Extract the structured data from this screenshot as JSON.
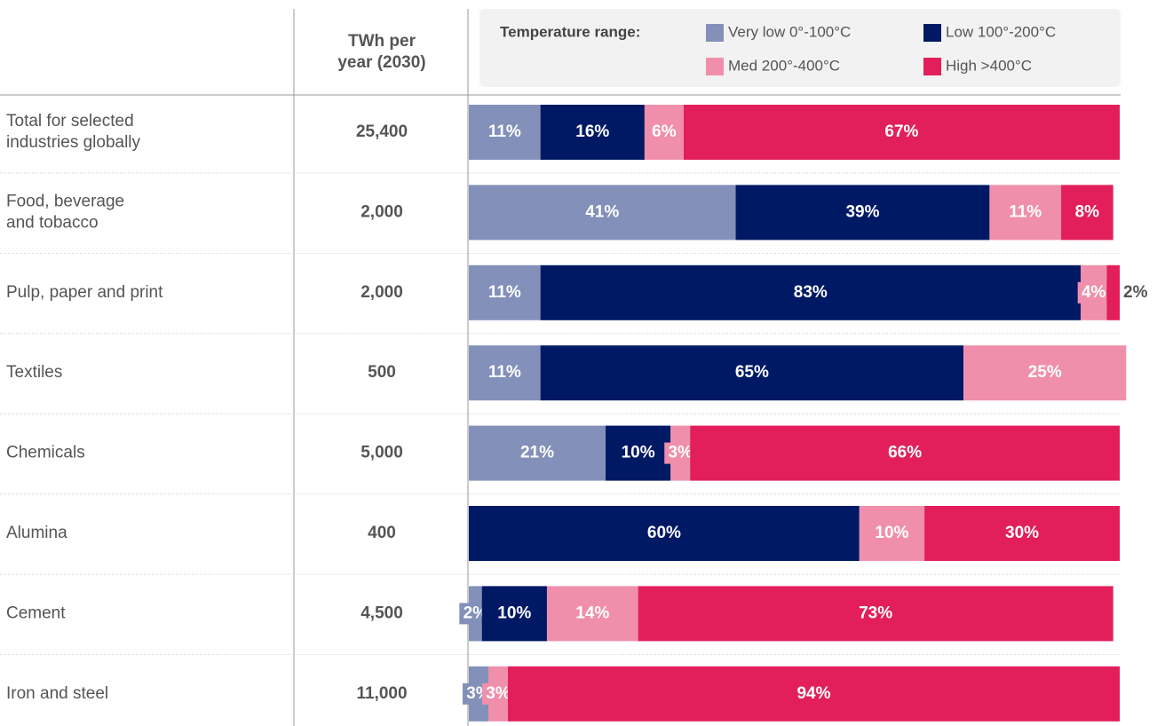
{
  "chart_data": {
    "type": "stacked-bar",
    "legend_title": "Temperature range:",
    "value_header": "TWh per\nyear (2030)",
    "categories": [
      "Total for selected\nindustries globally",
      "Food, beverage\nand tobacco",
      "Pulp, paper and print",
      "Textiles",
      "Chemicals",
      "Alumina",
      "Cement",
      "Iron and steel"
    ],
    "twh": [
      "25,400",
      "2,000",
      "2,000",
      "500",
      "5,000",
      "400",
      "4,500",
      "11,000"
    ],
    "xlim": [
      0,
      100
    ],
    "series": [
      {
        "name": "Very low 0°-100°C",
        "color": "#8390b9",
        "values": [
          11,
          41,
          11,
          11,
          21,
          null,
          2,
          3
        ],
        "value_labels": [
          "11%",
          "41%",
          "11%",
          "11%",
          "21%",
          null,
          "2%",
          "3%"
        ]
      },
      {
        "name": "Low 100°-200°C",
        "color": "#001965",
        "values": [
          16,
          39,
          83,
          65,
          10,
          60,
          10,
          null
        ],
        "value_labels": [
          "16%",
          "39%",
          "83%",
          "65%",
          "10%",
          "60%",
          "10%",
          null
        ]
      },
      {
        "name": "Med 200°-400°C",
        "color": "#f08fab",
        "values": [
          6,
          11,
          4,
          25,
          3,
          10,
          14,
          3
        ],
        "value_labels": [
          "6%",
          "11%",
          "4%",
          "25%",
          "3%",
          "10%",
          "14%",
          "3%"
        ]
      },
      {
        "name": "High >400°C",
        "color": "#e21f5a",
        "values": [
          67,
          8,
          2,
          null,
          66,
          30,
          73,
          94
        ],
        "value_labels": [
          "67%",
          "8%",
          "2%",
          null,
          "66%",
          "30%",
          "73%",
          "94%"
        ]
      }
    ]
  }
}
